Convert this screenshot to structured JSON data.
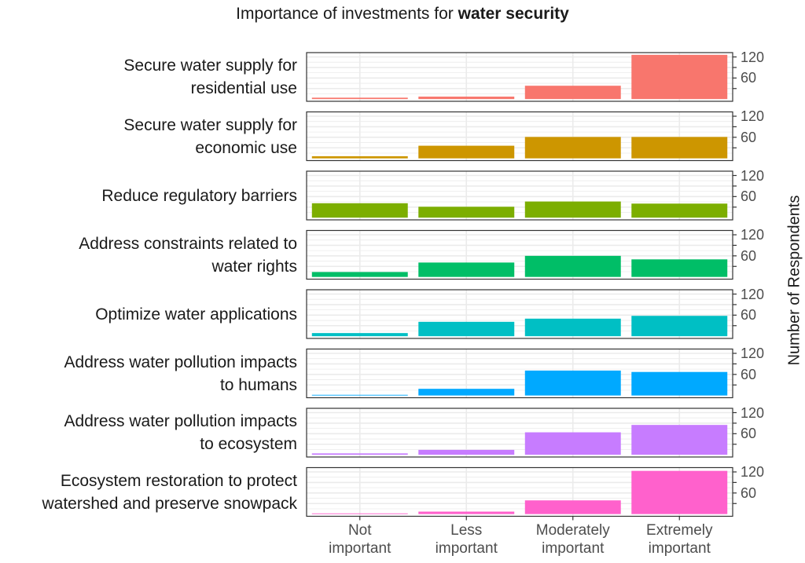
{
  "chart_data": {
    "type": "bar",
    "title_prefix": "Importance of investments for ",
    "title_bold": "water security",
    "xlabel": "",
    "ylabel": "Number of Respondents",
    "categories": [
      "Not\nimportant",
      "Less\nimportant",
      "Moderately\nimportant",
      "Extremely\nimportant"
    ],
    "ylim": [
      0,
      126
    ],
    "yticks": [
      30,
      60,
      90,
      120
    ],
    "ytick_labels": [
      "60",
      "120"
    ],
    "ytick_label_values": [
      60,
      120
    ],
    "y_axis_position": "right",
    "grid": true,
    "legend": "none",
    "facets": [
      {
        "label": "Secure water supply for\nresidential use",
        "color": "#F8766D",
        "values": [
          4,
          7,
          38,
          126
        ]
      },
      {
        "label": "Secure water supply for\neconomic use",
        "color": "#CD9600",
        "values": [
          6,
          36,
          61,
          61
        ]
      },
      {
        "label": "Reduce regulatory barriers",
        "color": "#7CAE00",
        "values": [
          41,
          31,
          46,
          40
        ]
      },
      {
        "label": "Address constraints related to\nwater rights",
        "color": "#00BE67",
        "values": [
          14,
          41,
          60,
          50
        ]
      },
      {
        "label": "Optimize water applications",
        "color": "#00BFC4",
        "values": [
          9,
          41,
          50,
          58
        ]
      },
      {
        "label": "Address water pollution impacts\nto humans",
        "color": "#00A9FF",
        "values": [
          2,
          19,
          71,
          67
        ]
      },
      {
        "label": "Address water pollution impacts\nto ecosystem",
        "color": "#C77CFF",
        "values": [
          4,
          14,
          64,
          85
        ]
      },
      {
        "label": "Ecosystem restoration to protect\nwatershed and preserve snowpack",
        "color": "#FF61CC",
        "values": [
          2,
          7,
          39,
          123
        ]
      }
    ]
  }
}
